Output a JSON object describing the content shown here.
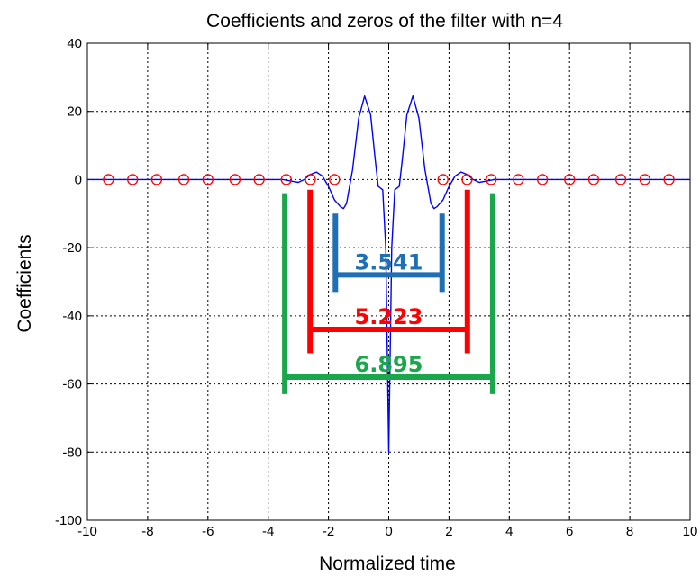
{
  "chart_data": {
    "type": "line",
    "title": "Coefficients and zeros of the filter with n=4",
    "xlabel": "Normalized time",
    "ylabel": "Coefficients",
    "xlim": [
      -10,
      10
    ],
    "ylim": [
      -100,
      40
    ],
    "xticks": [
      -10,
      -8,
      -6,
      -4,
      -2,
      0,
      2,
      4,
      6,
      8,
      10
    ],
    "yticks": [
      40,
      20,
      0,
      -20,
      -40,
      -60,
      -80,
      -100
    ],
    "grid": true,
    "series": [
      {
        "style": "line",
        "color": "#0000ff",
        "x": [
          -10,
          -4,
          -3.5,
          -3.2,
          -3.0,
          -2.8,
          -2.6,
          -2.4,
          -2.2,
          -2.0,
          -1.8,
          -1.6,
          -1.5,
          -1.4,
          -1.2,
          -1.0,
          -0.8,
          -0.6,
          -0.45,
          -0.35,
          -0.2,
          -0.1,
          0,
          0.1,
          0.2,
          0.35,
          0.45,
          0.6,
          0.8,
          1.0,
          1.2,
          1.4,
          1.5,
          1.6,
          1.8,
          2.0,
          2.2,
          2.4,
          2.6,
          2.8,
          3.0,
          3.2,
          3.5,
          4,
          10
        ],
        "y": [
          0,
          0,
          0,
          -0.5,
          -0.8,
          0,
          1.5,
          2.2,
          1.0,
          -2.0,
          -6.0,
          -8.0,
          -8.5,
          -7.0,
          3.0,
          18.0,
          24.5,
          19.0,
          6.0,
          -2.0,
          -3.0,
          -20.0,
          -80.0,
          -20.0,
          -3.0,
          -2.0,
          6.0,
          19.0,
          24.5,
          18.0,
          3.0,
          -7.0,
          -8.5,
          -8.0,
          -6.0,
          -2.0,
          1.0,
          2.2,
          1.5,
          0,
          -0.8,
          -0.5,
          0,
          0,
          0
        ]
      },
      {
        "style": "markers",
        "marker": "circle",
        "color": "#ff0000",
        "x": [
          -9.3,
          -8.5,
          -7.7,
          -6.8,
          -6.0,
          -5.1,
          -4.3,
          -3.4,
          -2.6,
          -1.8,
          1.8,
          2.6,
          3.4,
          4.3,
          5.1,
          6.0,
          6.8,
          7.7,
          8.5,
          9.3
        ],
        "y": [
          0,
          0,
          0,
          0,
          0,
          0,
          0,
          0,
          0,
          0,
          0,
          0,
          0,
          0,
          0,
          0,
          0,
          0,
          0,
          0
        ]
      }
    ],
    "annotations": [
      {
        "label": "3.541",
        "color": "#1f6fb5",
        "x_from": -1.77,
        "x_to": 1.77,
        "y_bar": -28,
        "y_top": -10,
        "y_bottom": -33
      },
      {
        "label": "5.223",
        "color": "#ff0000",
        "x_from": -2.61,
        "x_to": 2.61,
        "y_bar": -44,
        "y_top": -3,
        "y_bottom": -51
      },
      {
        "label": "6.895",
        "color": "#1aa64a",
        "x_from": -3.45,
        "x_to": 3.45,
        "y_bar": -58,
        "y_top": -4,
        "y_bottom": -63
      }
    ]
  }
}
